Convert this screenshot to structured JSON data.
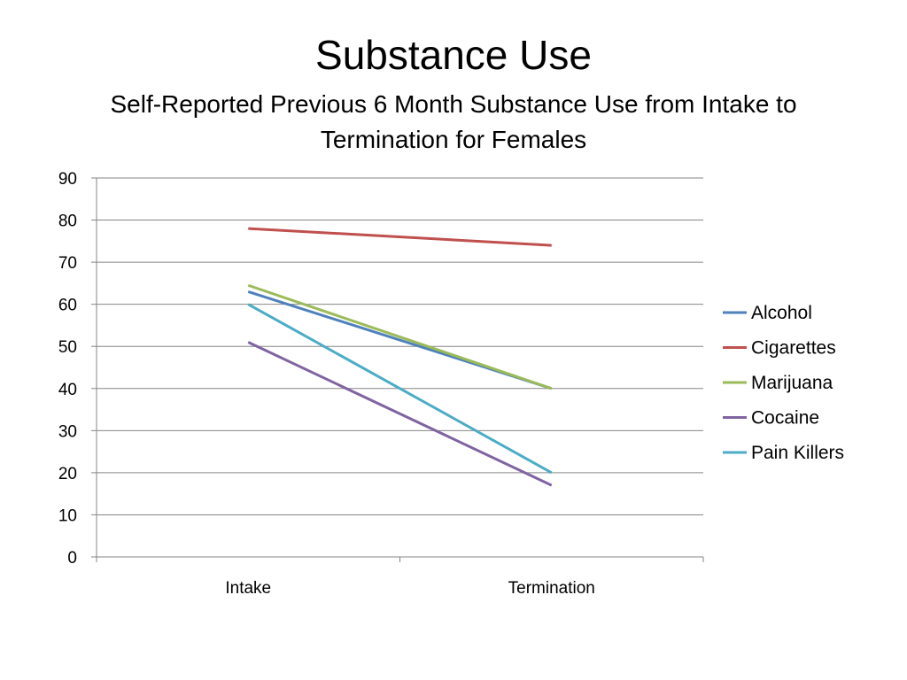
{
  "slide": {
    "title": "Substance Use",
    "subtitle": "Self-Reported Previous 6 Month Substance Use from Intake to Termination for Females"
  },
  "chart_data": {
    "type": "line",
    "categories": [
      "Intake",
      "Termination"
    ],
    "ylim": [
      0,
      90
    ],
    "yticks": [
      0,
      10,
      20,
      30,
      40,
      50,
      60,
      70,
      80,
      90
    ],
    "grid": true,
    "legend_position": "right",
    "series": [
      {
        "name": "Alcohol",
        "color": "#4F81BD",
        "values": [
          63,
          40
        ]
      },
      {
        "name": "Cigarettes",
        "color": "#C0504D",
        "values": [
          78,
          74
        ]
      },
      {
        "name": "Marijuana",
        "color": "#9BBB59",
        "values": [
          64.5,
          40
        ]
      },
      {
        "name": "Cocaine",
        "color": "#8064A2",
        "values": [
          51,
          17
        ]
      },
      {
        "name": "Pain Killers",
        "color": "#4BACC6",
        "values": [
          60,
          20
        ]
      }
    ]
  }
}
